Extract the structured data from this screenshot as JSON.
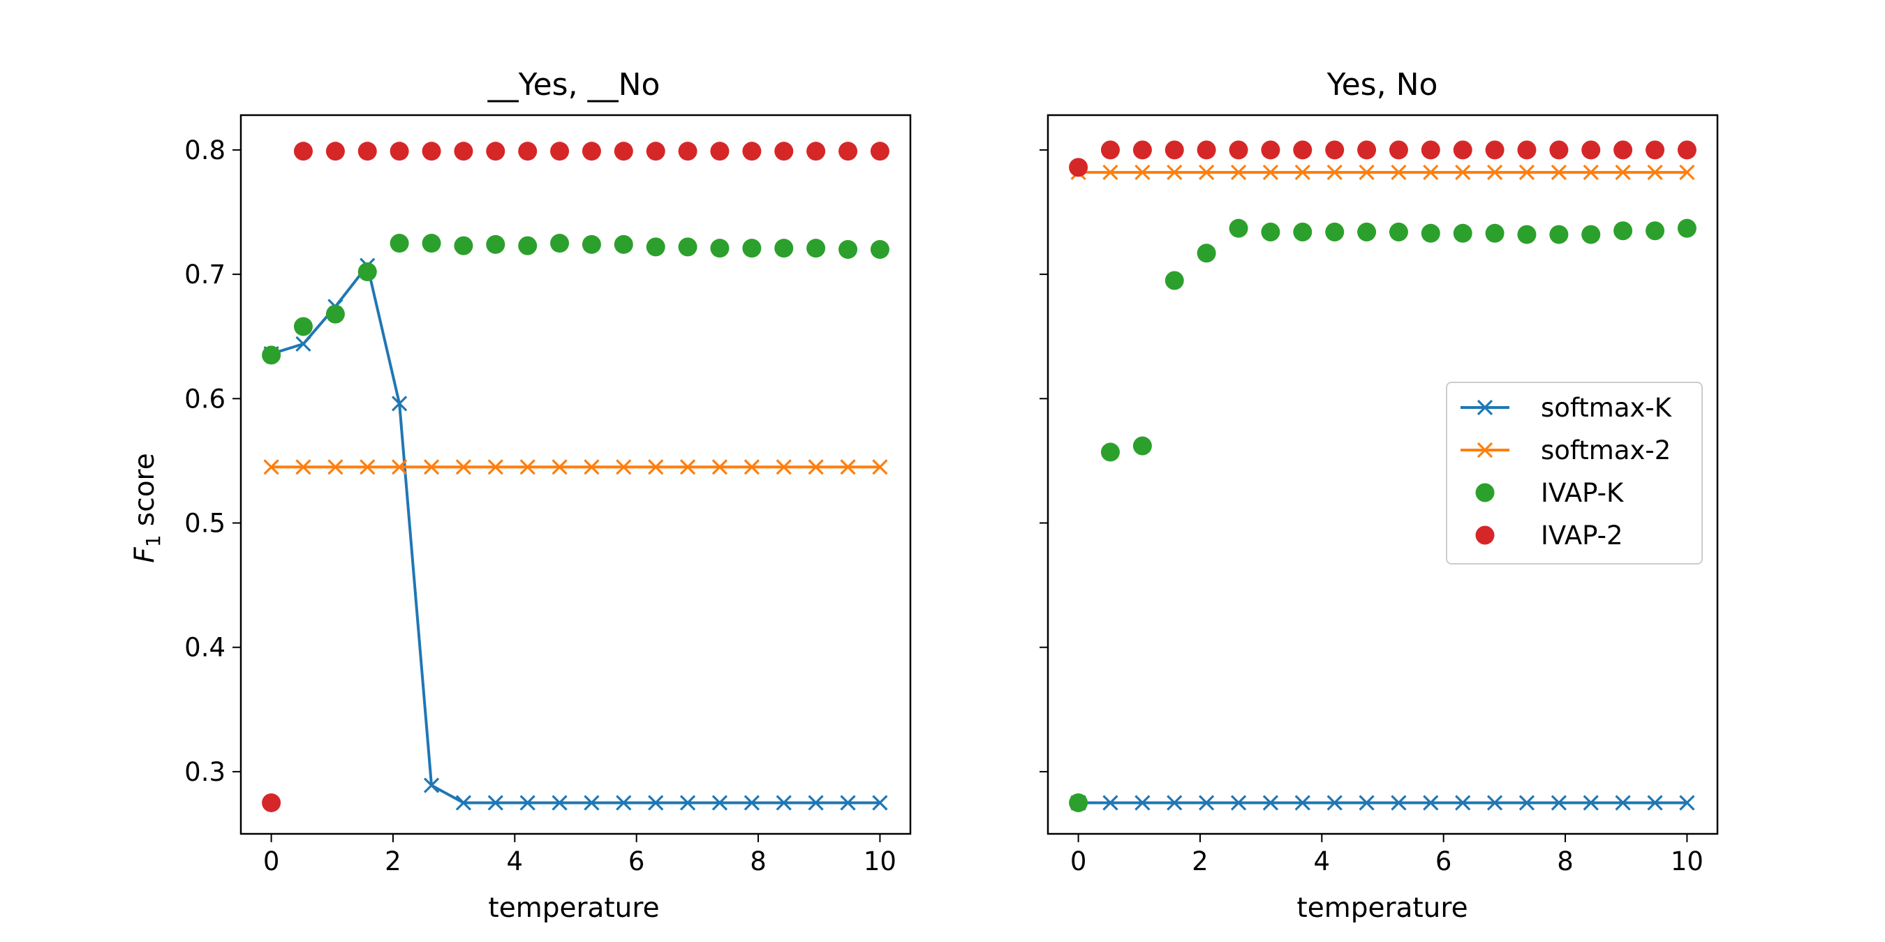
{
  "chart_data": [
    {
      "type": "line",
      "title": "__Yes, __No",
      "xlabel": "temperature",
      "ylabel": "F1 score",
      "ylabel_main": "F",
      "ylabel_sub": "1",
      "ylabel_rest": " score",
      "xlim": [
        -0.5,
        10.5
      ],
      "ylim": [
        0.25,
        0.828
      ],
      "xticks": [
        0,
        2,
        4,
        6,
        8,
        10
      ],
      "yticks": [
        0.3,
        0.4,
        0.5,
        0.6,
        0.7,
        0.8
      ],
      "x": [
        0,
        0.526,
        1.053,
        1.579,
        2.105,
        2.632,
        3.158,
        3.684,
        4.211,
        4.737,
        5.263,
        5.789,
        6.316,
        6.842,
        7.368,
        7.895,
        8.421,
        8.947,
        9.474,
        10
      ],
      "series": [
        {
          "name": "softmax-K",
          "marker": "x",
          "line": true,
          "color": "#1f77b4",
          "values": [
            0.636,
            0.644,
            0.674,
            0.707,
            0.596,
            0.289,
            0.275,
            0.275,
            0.275,
            0.275,
            0.275,
            0.275,
            0.275,
            0.275,
            0.275,
            0.275,
            0.275,
            0.275,
            0.275,
            0.275
          ]
        },
        {
          "name": "softmax-2",
          "marker": "x",
          "line": true,
          "color": "#ff7f0e",
          "values": [
            0.545,
            0.545,
            0.545,
            0.545,
            0.545,
            0.545,
            0.545,
            0.545,
            0.545,
            0.545,
            0.545,
            0.545,
            0.545,
            0.545,
            0.545,
            0.545,
            0.545,
            0.545,
            0.545,
            0.545
          ]
        },
        {
          "name": "IVAP-K",
          "marker": "o",
          "line": false,
          "color": "#2ca02c",
          "values": [
            0.635,
            0.658,
            0.668,
            0.702,
            0.725,
            0.725,
            0.723,
            0.724,
            0.723,
            0.725,
            0.724,
            0.724,
            0.722,
            0.722,
            0.721,
            0.721,
            0.721,
            0.721,
            0.72,
            0.72
          ]
        },
        {
          "name": "IVAP-2",
          "marker": "o",
          "line": false,
          "color": "#d62728",
          "values": [
            0.275,
            0.799,
            0.799,
            0.799,
            0.799,
            0.799,
            0.799,
            0.799,
            0.799,
            0.799,
            0.799,
            0.799,
            0.799,
            0.799,
            0.799,
            0.799,
            0.799,
            0.799,
            0.799,
            0.799
          ]
        }
      ]
    },
    {
      "type": "line",
      "title": "Yes, No",
      "xlabel": "temperature",
      "xlim": [
        -0.5,
        10.5
      ],
      "ylim": [
        0.25,
        0.828
      ],
      "xticks": [
        0,
        2,
        4,
        6,
        8,
        10
      ],
      "yticks": [
        0.3,
        0.4,
        0.5,
        0.6,
        0.7,
        0.8
      ],
      "shared_y": true,
      "legend": "center-right",
      "x": [
        0,
        0.526,
        1.053,
        1.579,
        2.105,
        2.632,
        3.158,
        3.684,
        4.211,
        4.737,
        5.263,
        5.789,
        6.316,
        6.842,
        7.368,
        7.895,
        8.421,
        8.947,
        9.474,
        10
      ],
      "series": [
        {
          "name": "softmax-K",
          "marker": "x",
          "line": true,
          "color": "#1f77b4",
          "values": [
            0.275,
            0.275,
            0.275,
            0.275,
            0.275,
            0.275,
            0.275,
            0.275,
            0.275,
            0.275,
            0.275,
            0.275,
            0.275,
            0.275,
            0.275,
            0.275,
            0.275,
            0.275,
            0.275,
            0.275
          ]
        },
        {
          "name": "softmax-2",
          "marker": "x",
          "line": true,
          "color": "#ff7f0e",
          "values": [
            0.782,
            0.782,
            0.782,
            0.782,
            0.782,
            0.782,
            0.782,
            0.782,
            0.782,
            0.782,
            0.782,
            0.782,
            0.782,
            0.782,
            0.782,
            0.782,
            0.782,
            0.782,
            0.782,
            0.782
          ]
        },
        {
          "name": "IVAP-K",
          "marker": "o",
          "line": false,
          "color": "#2ca02c",
          "values": [
            0.275,
            0.557,
            0.562,
            0.695,
            0.717,
            0.737,
            0.734,
            0.734,
            0.734,
            0.734,
            0.734,
            0.733,
            0.733,
            0.733,
            0.732,
            0.732,
            0.732,
            0.735,
            0.735,
            0.737
          ]
        },
        {
          "name": "IVAP-2",
          "marker": "o",
          "line": false,
          "color": "#d62728",
          "values": [
            0.786,
            0.8,
            0.8,
            0.8,
            0.8,
            0.8,
            0.8,
            0.8,
            0.8,
            0.8,
            0.8,
            0.8,
            0.8,
            0.8,
            0.8,
            0.8,
            0.8,
            0.8,
            0.8,
            0.8
          ]
        }
      ]
    }
  ]
}
